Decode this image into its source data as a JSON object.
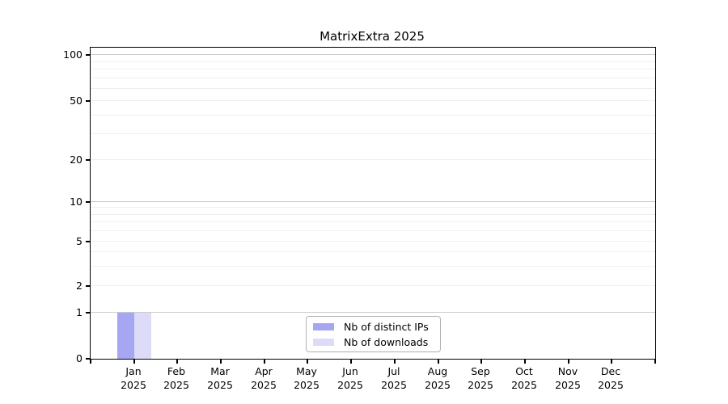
{
  "chart_data": {
    "type": "bar",
    "title": "MatrixExtra 2025",
    "categories": [
      "Jan 2025",
      "Feb 2025",
      "Mar 2025",
      "Apr 2025",
      "May 2025",
      "Jun 2025",
      "Jul 2025",
      "Aug 2025",
      "Sep 2025",
      "Oct 2025",
      "Nov 2025",
      "Dec 2025"
    ],
    "series": [
      {
        "name": "Nb of distinct IPs",
        "color": "#a6a6f2",
        "values": [
          1,
          0,
          0,
          0,
          0,
          0,
          0,
          0,
          0,
          0,
          0,
          0
        ]
      },
      {
        "name": "Nb of downloads",
        "color": "#dcdcf8",
        "values": [
          1,
          0,
          0,
          0,
          0,
          0,
          0,
          0,
          0,
          0,
          0,
          0
        ]
      }
    ],
    "y_axis": {
      "tick_values": [
        0,
        1,
        2,
        5,
        10,
        20,
        50,
        100
      ],
      "minor_gridline_values": [
        3,
        4,
        6,
        7,
        8,
        9,
        30,
        40,
        60,
        70,
        80,
        90
      ],
      "major_gridline_values": [
        1,
        10,
        100
      ],
      "scale": "log above 1, linear 0-1",
      "ylim": [
        0,
        112
      ]
    },
    "x_axis": {
      "ticks_per_row": 12,
      "label_line2": "2025"
    },
    "legend": {
      "position": "lower center"
    },
    "grid": true,
    "colors": {
      "major_grid": "#cbcbcb",
      "minor_grid": "#efefef",
      "axis": "#000000",
      "legend_border": "#b0b0b0",
      "background": "#ffffff"
    }
  }
}
